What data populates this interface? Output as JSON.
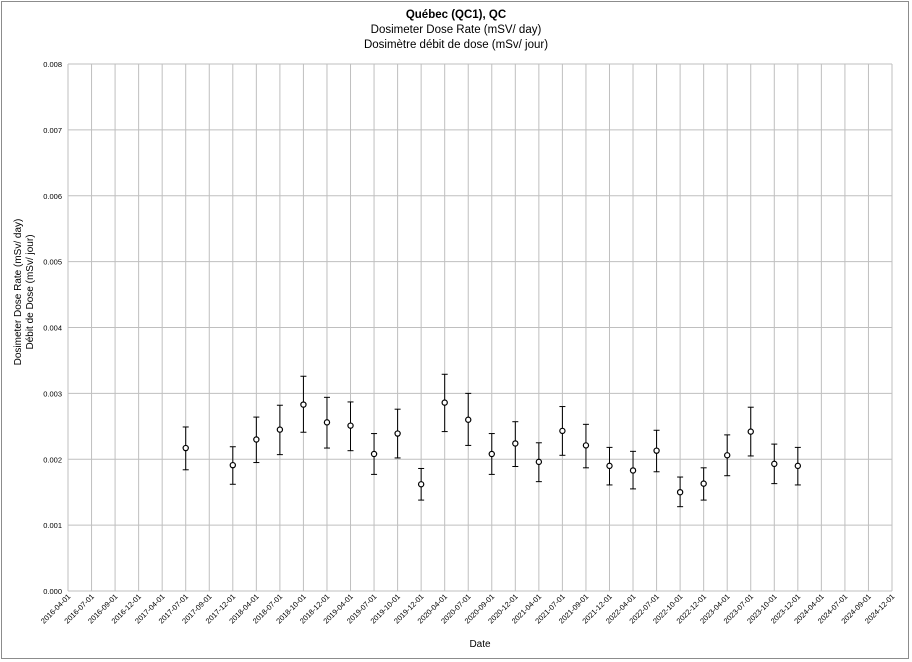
{
  "chart_data": {
    "type": "scatter",
    "title": "Québec (QC1), QC",
    "subtitle_en": "Dosimeter Dose Rate (mSV/ day)",
    "subtitle_fr": "Dosimètre débit de dose (mSv/ jour)",
    "xlabel": "Date",
    "ylabel_en": "Dosimeter Dose Rate (mSv/ day)",
    "ylabel_fr": "Débit de Dose (mSv/ jour)",
    "ylim": [
      0,
      0.008
    ],
    "yticks": [
      "0.000",
      "0.001",
      "0.002",
      "0.003",
      "0.004",
      "0.005",
      "0.006",
      "0.007",
      "0.008"
    ],
    "xticks": [
      "2016-04-01",
      "2016-07-01",
      "2016-09-01",
      "2016-12-01",
      "2017-04-01",
      "2017-07-01",
      "2017-09-01",
      "2017-12-01",
      "2018-04-01",
      "2018-07-01",
      "2018-10-01",
      "2018-12-01",
      "2019-04-01",
      "2019-07-01",
      "2019-10-01",
      "2019-12-01",
      "2020-04-01",
      "2020-07-01",
      "2020-09-01",
      "2020-12-01",
      "2021-04-01",
      "2021-07-01",
      "2021-09-01",
      "2021-12-01",
      "2022-04-01",
      "2022-07-01",
      "2022-10-01",
      "2022-12-01",
      "2023-04-01",
      "2023-07-01",
      "2023-10-01",
      "2023-12-01",
      "2024-04-01",
      "2024-07-01",
      "2024-09-01",
      "2024-12-01"
    ],
    "grid": true,
    "marker": "open-circle",
    "marker_color": "#000000",
    "series": [
      {
        "x": [
          "2017-07-01",
          "2017-12-01",
          "2018-04-01",
          "2018-07-01",
          "2018-10-01",
          "2018-12-01",
          "2019-04-01",
          "2019-07-01",
          "2019-10-01",
          "2019-12-01",
          "2020-04-01",
          "2020-07-01",
          "2020-09-01",
          "2020-12-01",
          "2021-04-01",
          "2021-07-01",
          "2021-09-01",
          "2021-12-01",
          "2022-04-01",
          "2022-07-01",
          "2022-10-01",
          "2022-12-01",
          "2023-04-01",
          "2023-07-01",
          "2023-10-01",
          "2023-12-01"
        ],
        "y": [
          0.00217,
          0.00191,
          0.0023,
          0.00245,
          0.00283,
          0.00256,
          0.00251,
          0.00208,
          0.00239,
          0.00162,
          0.00286,
          0.0026,
          0.00208,
          0.00224,
          0.00196,
          0.00243,
          0.00221,
          0.0019,
          0.00183,
          0.00213,
          0.0015,
          0.00163,
          0.00206,
          0.00242,
          0.00193,
          0.0019
        ],
        "err_low": [
          0.00184,
          0.00162,
          0.00195,
          0.00207,
          0.00241,
          0.00217,
          0.00213,
          0.00177,
          0.00202,
          0.00138,
          0.00242,
          0.00221,
          0.00177,
          0.00189,
          0.00166,
          0.00206,
          0.00187,
          0.00161,
          0.00155,
          0.00181,
          0.00128,
          0.00138,
          0.00175,
          0.00205,
          0.00163,
          0.00161
        ],
        "err_high": [
          0.00249,
          0.00219,
          0.00264,
          0.00282,
          0.00326,
          0.00294,
          0.00287,
          0.00239,
          0.00276,
          0.00186,
          0.00329,
          0.003,
          0.00239,
          0.00257,
          0.00225,
          0.0028,
          0.00253,
          0.00218,
          0.00212,
          0.00244,
          0.00173,
          0.00187,
          0.00237,
          0.00279,
          0.00223,
          0.00218
        ]
      }
    ]
  }
}
